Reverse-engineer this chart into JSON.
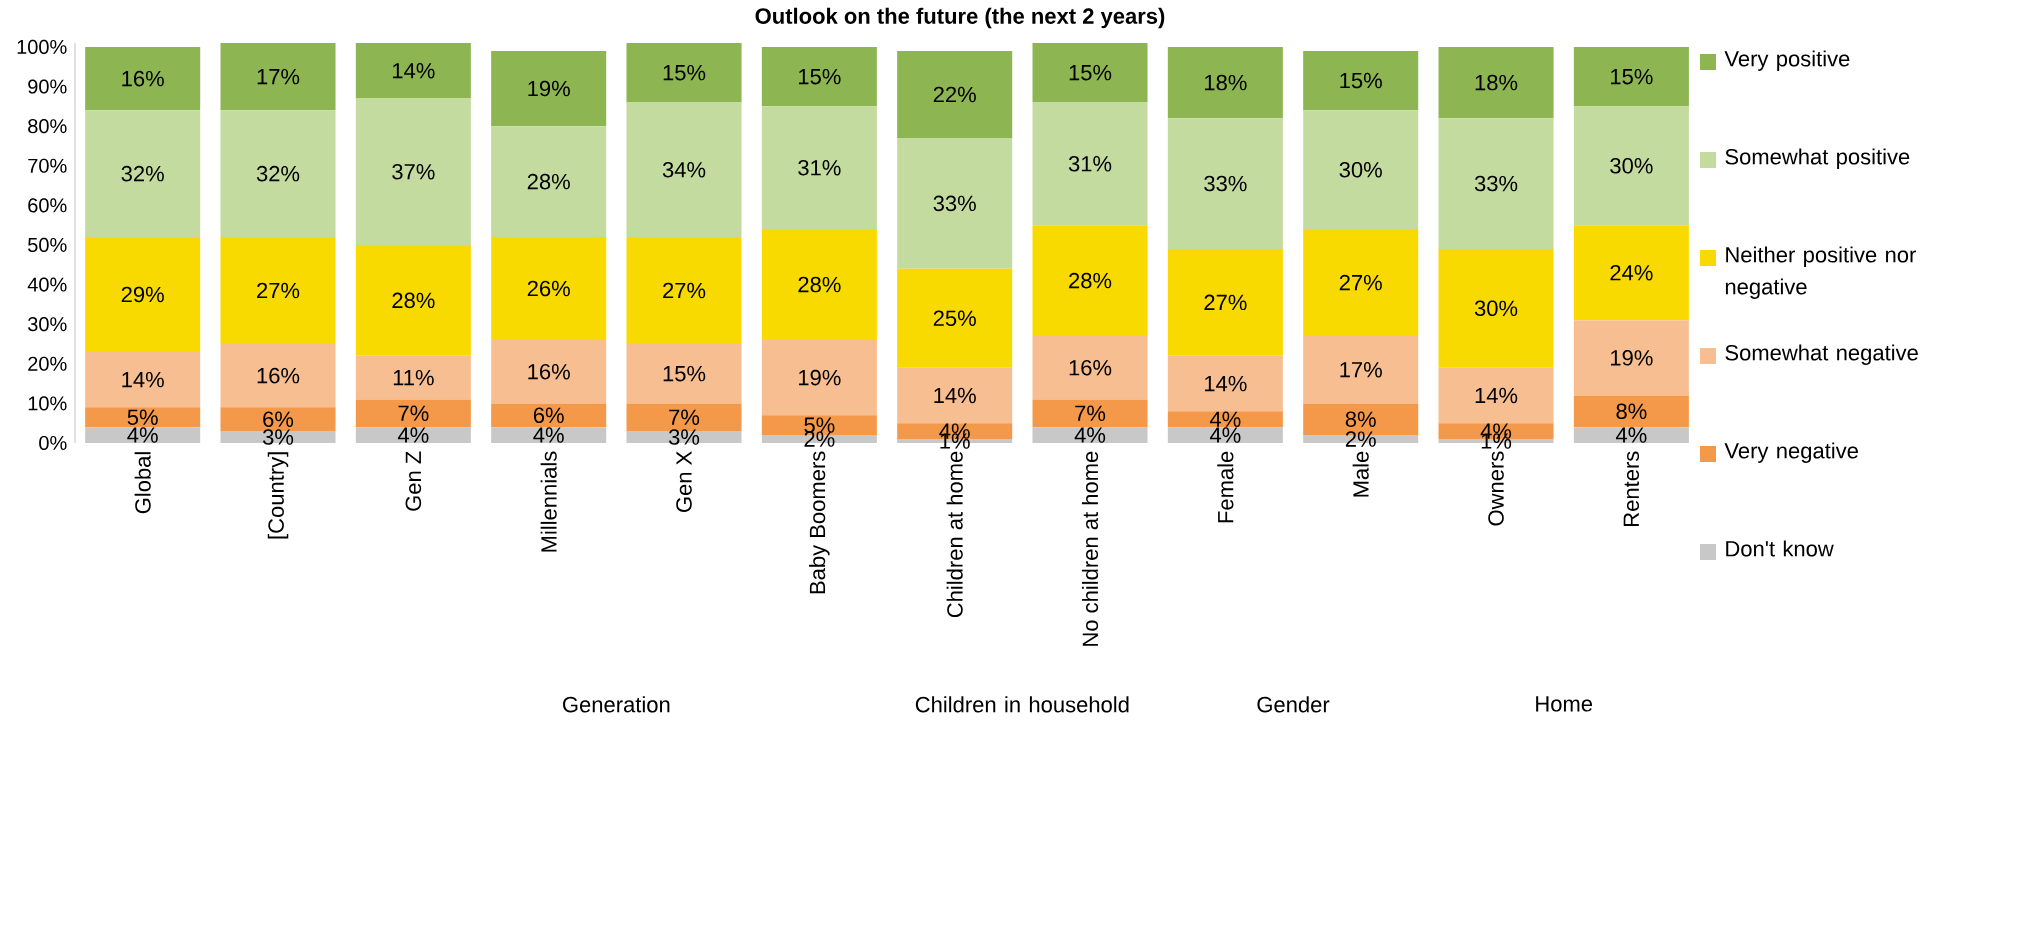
{
  "chart_data": {
    "type": "bar",
    "title": "Outlook on the future (the next 2 years)",
    "categories": [
      "Global",
      "[Country]",
      "Gen Z",
      "Millennials",
      "Gen X",
      "Baby Boomers",
      "Children at home",
      "No children at home",
      "Female",
      "Male",
      "Owners",
      "Renters"
    ],
    "stacked": true,
    "grid": false,
    "legend": "right",
    "ylim": [
      0,
      101
    ],
    "yticks": [
      {
        "value": 0,
        "label": "0%"
      },
      {
        "value": 10,
        "label": "10%"
      },
      {
        "value": 20,
        "label": "20%"
      },
      {
        "value": 30,
        "label": "30%"
      },
      {
        "value": 40,
        "label": "40%"
      },
      {
        "value": 50,
        "label": "50%"
      },
      {
        "value": 60,
        "label": "60%"
      },
      {
        "value": 70,
        "label": "70%"
      },
      {
        "value": 80,
        "label": "80%"
      },
      {
        "value": 90,
        "label": "90%"
      },
      {
        "value": 100,
        "label": "100%"
      }
    ],
    "annotations": [
      "Generation",
      "Children in household",
      "Gender",
      "Home"
    ],
    "series": [
      {
        "name": "Don't know",
        "color": "#c8c8c8",
        "values": [
          4,
          3,
          4,
          4,
          3,
          2,
          1,
          4,
          4,
          2,
          1,
          4
        ],
        "value_labels": [
          "4%",
          "3%",
          "4%",
          "4%",
          "3%",
          "2%",
          "1%",
          "4%",
          "4%",
          "2%",
          "1%",
          "4%"
        ]
      },
      {
        "name": "Very negative",
        "color": "#f4994a",
        "values": [
          5,
          6,
          7,
          6,
          7,
          5,
          4,
          7,
          4,
          8,
          4,
          8
        ],
        "value_labels": [
          "5%",
          "6%",
          "7%",
          "6%",
          "7%",
          "5%",
          "4%",
          "7%",
          "4%",
          "8%",
          "4%",
          "8%"
        ]
      },
      {
        "name": "Somewhat negative",
        "color": "#f7bf91",
        "values": [
          14,
          16,
          11,
          16,
          15,
          19,
          14,
          16,
          14,
          17,
          14,
          19
        ],
        "value_labels": [
          "14%",
          "16%",
          "11%",
          "16%",
          "15%",
          "19%",
          "14%",
          "16%",
          "14%",
          "17%",
          "14%",
          "19%"
        ]
      },
      {
        "name": "Neither positive nor negative",
        "color": "#f9da00",
        "values": [
          29,
          27,
          28,
          26,
          27,
          28,
          25,
          28,
          27,
          27,
          30,
          24
        ],
        "value_labels": [
          "29%",
          "27%",
          "28%",
          "26%",
          "27%",
          "28%",
          "25%",
          "28%",
          "27%",
          "27%",
          "30%",
          "24%"
        ]
      },
      {
        "name": "Somewhat positive",
        "color": "#c4dba0",
        "values": [
          32,
          32,
          37,
          28,
          34,
          31,
          33,
          31,
          33,
          30,
          33,
          30
        ],
        "value_labels": [
          "32%",
          "32%",
          "37%",
          "28%",
          "34%",
          "31%",
          "33%",
          "31%",
          "33%",
          "30%",
          "33%",
          "30%"
        ]
      },
      {
        "name": "Very positive",
        "color": "#8db652",
        "values": [
          16,
          17,
          14,
          19,
          15,
          15,
          22,
          15,
          18,
          15,
          18,
          15
        ],
        "value_labels": [
          "16%",
          "17%",
          "14%",
          "19%",
          "15%",
          "15%",
          "22%",
          "15%",
          "18%",
          "15%",
          "18%",
          "15%"
        ]
      }
    ]
  }
}
